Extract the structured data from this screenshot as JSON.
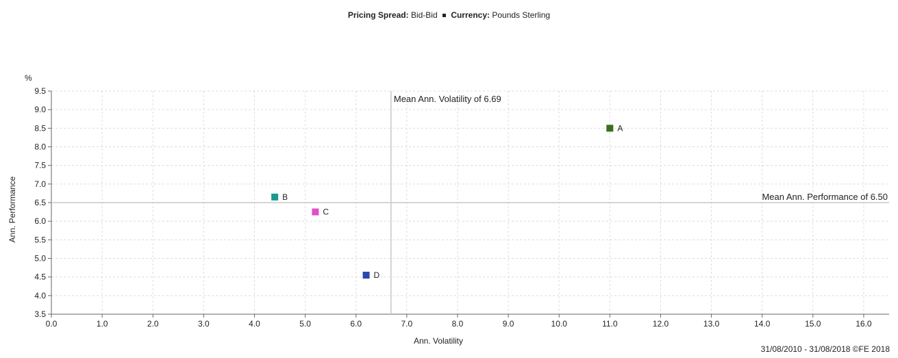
{
  "header": {
    "spread_label": "Pricing Spread:",
    "spread_value": "Bid-Bid",
    "currency_label": "Currency:",
    "currency_value": "Pounds Sterling"
  },
  "chart_data": {
    "type": "scatter",
    "xlabel": "Ann. Volatility",
    "ylabel": "Ann. Performance",
    "yunit": "%",
    "xlim": [
      0.0,
      16.5
    ],
    "ylim": [
      3.5,
      9.5
    ],
    "xticks": [
      "0.0",
      "1.0",
      "2.0",
      "3.0",
      "4.0",
      "5.0",
      "6.0",
      "7.0",
      "8.0",
      "9.0",
      "10.0",
      "11.0",
      "12.0",
      "13.0",
      "14.0",
      "15.0",
      "16.0"
    ],
    "yticks": [
      "3.5",
      "4.0",
      "4.5",
      "5.0",
      "5.5",
      "6.0",
      "6.5",
      "7.0",
      "7.5",
      "8.0",
      "8.5",
      "9.0",
      "9.5"
    ],
    "grid": true,
    "points": [
      {
        "label": "A",
        "x": 11.0,
        "y": 8.5,
        "color": "#3a6e1e"
      },
      {
        "label": "B",
        "x": 4.4,
        "y": 6.65,
        "color": "#1a9a8a"
      },
      {
        "label": "C",
        "x": 5.2,
        "y": 6.25,
        "color": "#e050c8"
      },
      {
        "label": "D",
        "x": 6.2,
        "y": 4.55,
        "color": "#2848b0"
      }
    ],
    "reference_lines": {
      "vertical": {
        "value": 6.69,
        "label": "Mean Ann. Volatility of 6.69"
      },
      "horizontal": {
        "value": 6.5,
        "label": "Mean Ann. Performance of 6.50"
      }
    }
  },
  "footer": {
    "date_range": "31/08/2010 - 31/08/2018 ©FE 2018"
  }
}
